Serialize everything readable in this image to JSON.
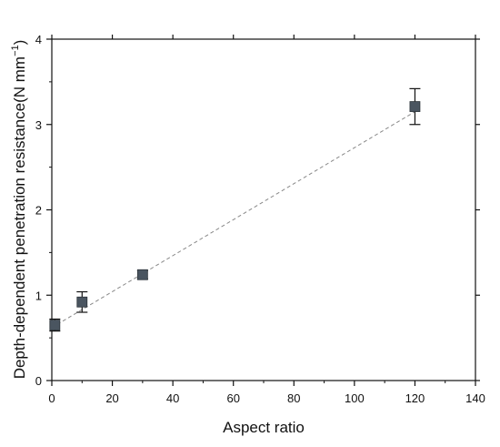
{
  "chart_data": {
    "type": "scatter",
    "xlabel": "Aspect ratio",
    "ylabel": "Depth-dependent penetration resistance(N mm",
    "ylabel_superscript": "−1",
    "ylabel_close": ")",
    "xlim": [
      0,
      140
    ],
    "ylim": [
      0,
      4
    ],
    "x_ticks": [
      0,
      20,
      40,
      60,
      80,
      100,
      120,
      140
    ],
    "y_ticks": [
      0,
      1,
      2,
      3,
      4
    ],
    "grid": false,
    "legend": "none",
    "series": [
      {
        "x": [
          1,
          10,
          30,
          120
        ],
        "y": [
          0.65,
          0.92,
          1.24,
          3.21
        ],
        "error": [
          0.07,
          0.12,
          0.05,
          0.21
        ],
        "marker": "square",
        "color": "#4a5560"
      }
    ],
    "fit_line": {
      "x": [
        0,
        120
      ],
      "y": [
        0.62,
        3.15
      ],
      "style": "dashed",
      "color": "#888888"
    }
  }
}
